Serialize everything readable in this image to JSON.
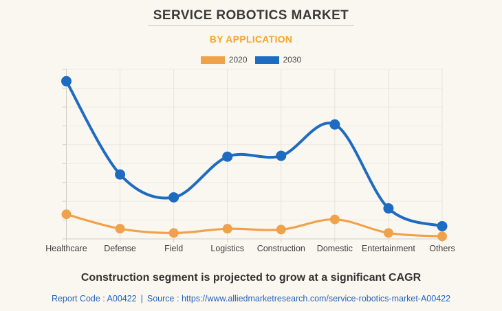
{
  "header": {
    "title": "SERVICE ROBOTICS MARKET",
    "subtitle": "BY APPLICATION"
  },
  "chart_data": {
    "type": "line",
    "title": "SERVICE ROBOTICS MARKET",
    "subtitle": "BY APPLICATION",
    "categories": [
      "Healthcare",
      "Defense",
      "Field",
      "Logistics",
      "Construction",
      "Domestic",
      "Entertainment",
      "Others"
    ],
    "series": [
      {
        "name": "2020",
        "color": "#F0A24B",
        "values": [
          14.5,
          6,
          3.5,
          6,
          5.5,
          11.5,
          3.5,
          1.5
        ]
      },
      {
        "name": "2030",
        "color": "#1E6BC2",
        "values": [
          93,
          38,
          24.5,
          48.5,
          49,
          67.5,
          18,
          7.5
        ]
      }
    ],
    "xlabel": "",
    "ylabel": "",
    "ylim": [
      0,
      100
    ],
    "y_tick_labels_visible": false,
    "grid": true,
    "smooth": true,
    "marker": "circle",
    "legend_position": "top"
  },
  "footer": {
    "caption": "Construction segment is projected to grow at a significant CAGR",
    "report_code": "Report Code : A00422",
    "separator": "|",
    "source_label": "Source :",
    "source_url": "https://www.alliedmarketresearch.com/service-robotics-market-A00422"
  },
  "colors": {
    "background": "#FAF7F0",
    "title_text": "#3A3A3A",
    "subtitle_accent": "#F7A527",
    "series_2020": "#F0A24B",
    "series_2030": "#1E6BC2",
    "gridline_vertical": "#E6E3DC",
    "gridline_horizontal": "#EDEAE4",
    "axis": "#D2CFC8",
    "axis_label": "#3D3D3D",
    "caption_text": "#333333",
    "link_text": "#2563BD",
    "legend_text": "#4A4A4A",
    "divider": "#CFCCC5"
  }
}
